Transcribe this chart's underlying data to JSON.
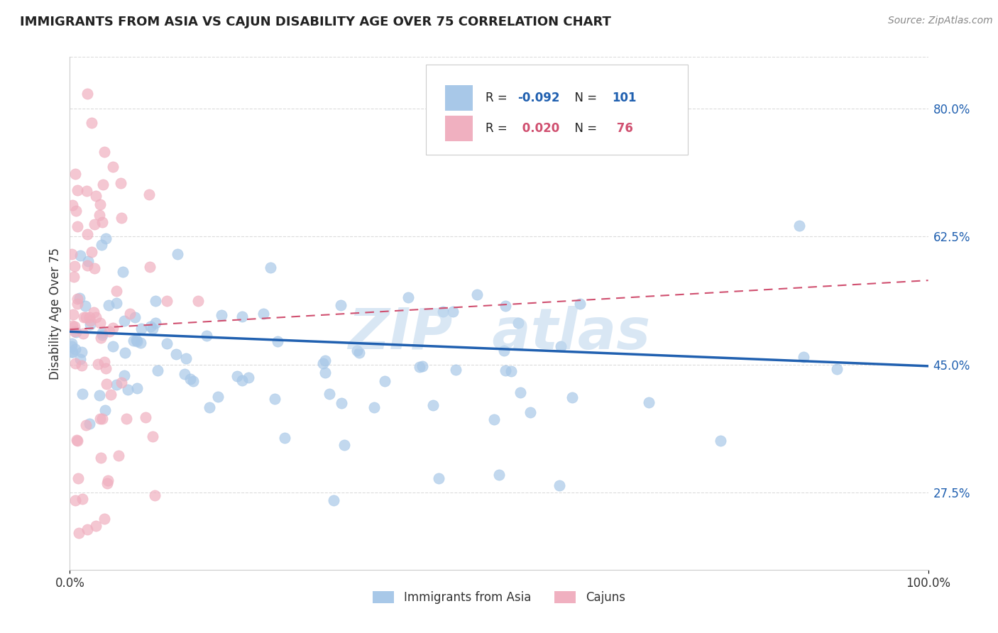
{
  "title": "IMMIGRANTS FROM ASIA VS CAJUN DISABILITY AGE OVER 75 CORRELATION CHART",
  "source_text": "Source: ZipAtlas.com",
  "ylabel": "Disability Age Over 75",
  "xlim": [
    0.0,
    1.0
  ],
  "ylim": [
    0.17,
    0.87
  ],
  "yticks": [
    0.275,
    0.45,
    0.625,
    0.8
  ],
  "ytick_labels": [
    "27.5%",
    "45.0%",
    "62.5%",
    "80.0%"
  ],
  "xticks": [
    0.0,
    1.0
  ],
  "xtick_labels": [
    "0.0%",
    "100.0%"
  ],
  "legend_labels": [
    "Immigrants from Asia",
    "Cajuns"
  ],
  "legend_r": [
    "-0.092",
    "0.020"
  ],
  "legend_n": [
    "101",
    "76"
  ],
  "blue_color": "#A8C8E8",
  "pink_color": "#F0B0C0",
  "blue_line_color": "#2060B0",
  "pink_line_color": "#D05070",
  "blue_trend_start": 0.495,
  "blue_trend_end": 0.448,
  "pink_trend_start": 0.498,
  "pink_trend_end": 0.565,
  "watermark": "ZIP  atlas",
  "watermark_color": "#C0D8EE",
  "grid_color": "#CCCCCC",
  "bg_color": "#FFFFFF",
  "legend_r_color": "#2060B0",
  "legend_n_color": "#2060B0"
}
